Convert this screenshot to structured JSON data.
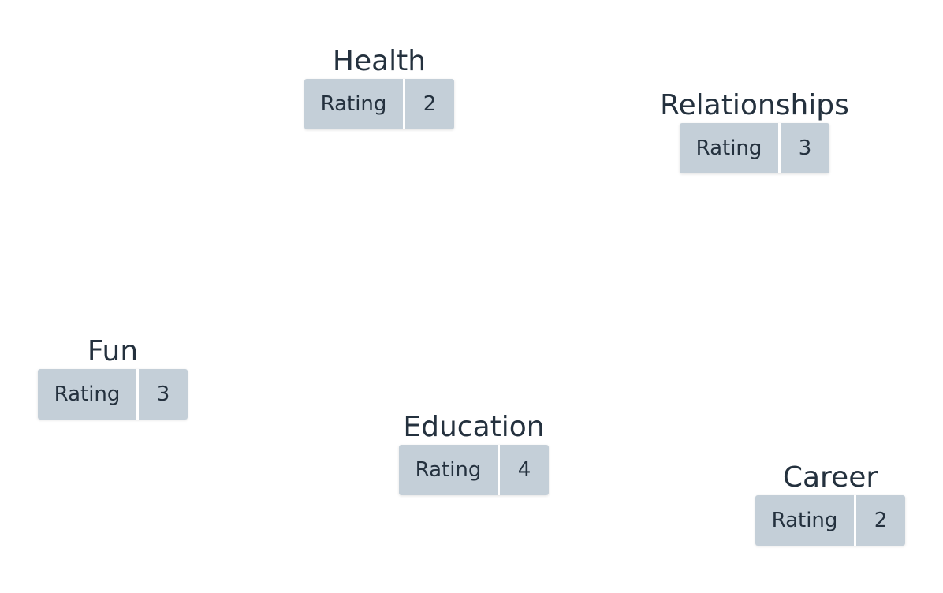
{
  "nodes": [
    {
      "key": "health",
      "title": "Health",
      "rating_label": "Rating",
      "rating": "2"
    },
    {
      "key": "relationships",
      "title": "Relationships",
      "rating_label": "Rating",
      "rating": "3"
    },
    {
      "key": "fun",
      "title": "Fun",
      "rating_label": "Rating",
      "rating": "3"
    },
    {
      "key": "education",
      "title": "Education",
      "rating_label": "Rating",
      "rating": "4"
    },
    {
      "key": "career",
      "title": "Career",
      "rating_label": "Rating",
      "rating": "2"
    }
  ],
  "colors": {
    "text": "#24313e",
    "rating_bg": "#c4cfd8",
    "background": "#ffffff"
  }
}
